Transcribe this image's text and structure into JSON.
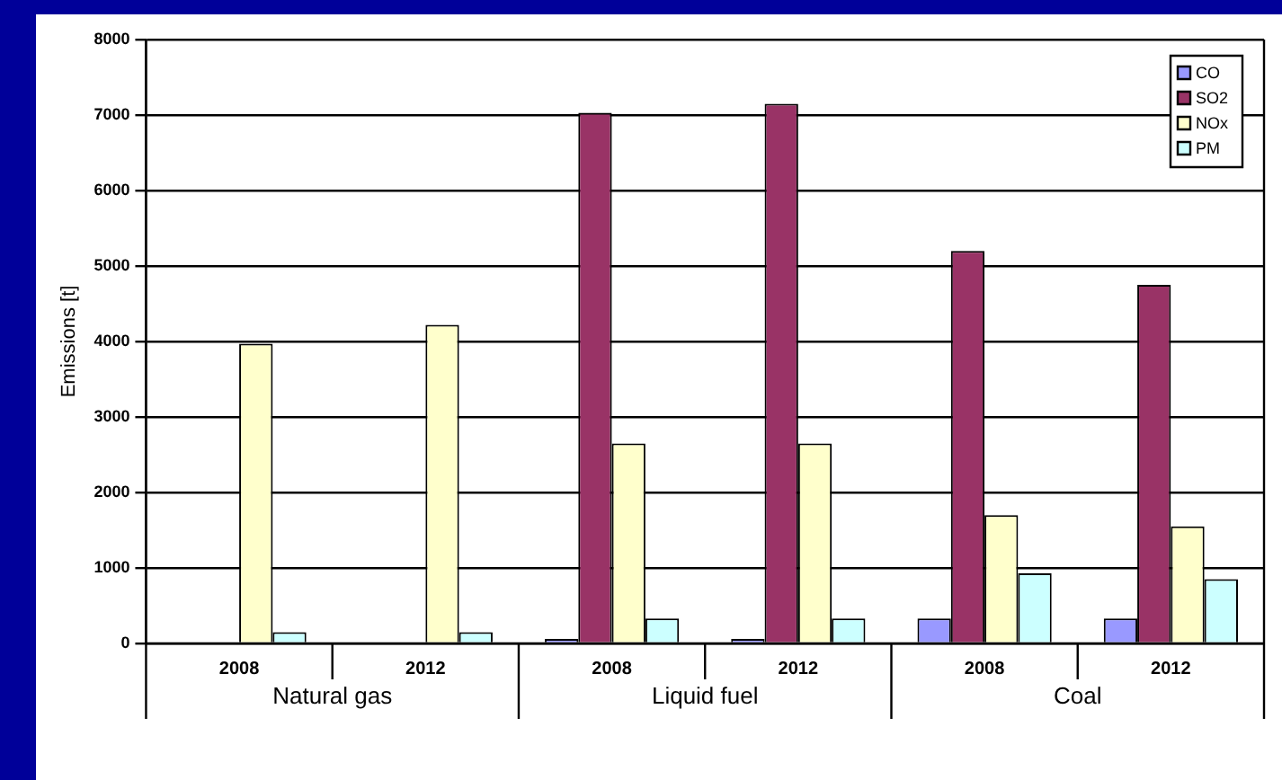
{
  "chart_data": {
    "type": "bar",
    "ylabel": "Emissions [t]",
    "categories": [
      "2008",
      "2012",
      "2008",
      "2012",
      "2008",
      "2012"
    ],
    "annotations": [
      "Natural gas",
      "Liquid fuel",
      "Coal"
    ],
    "series": [
      {
        "name": "CO",
        "color": "#9999ff",
        "values": [
          0,
          0,
          60,
          60,
          330,
          330
        ]
      },
      {
        "name": "SO2",
        "color": "#993366",
        "values": [
          0,
          0,
          7030,
          7150,
          5200,
          4750
        ]
      },
      {
        "name": "NOx",
        "color": "#ffffcc",
        "values": [
          3970,
          4220,
          2650,
          2650,
          1700,
          1550
        ]
      },
      {
        "name": "PM",
        "color": "#ccffff",
        "values": [
          150,
          150,
          330,
          330,
          930,
          850
        ]
      }
    ],
    "ylim": [
      0,
      8000
    ],
    "yticks": [
      0,
      1000,
      2000,
      3000,
      4000,
      5000,
      6000,
      7000,
      8000
    ],
    "grid": "y",
    "legend": "top right"
  }
}
